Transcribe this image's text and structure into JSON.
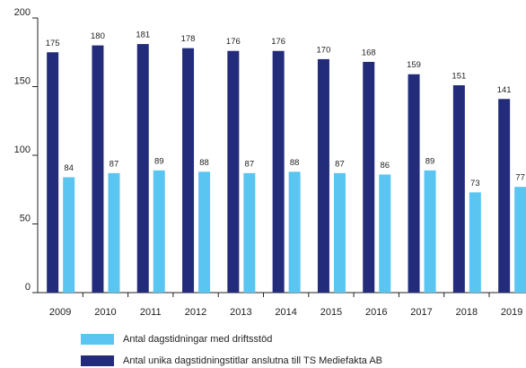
{
  "chart_data": {
    "type": "bar",
    "categories": [
      "2009",
      "2010",
      "2011",
      "2012",
      "2013",
      "2014",
      "2015",
      "2016",
      "2017",
      "2018",
      "2019"
    ],
    "series": [
      {
        "name": "Antal dagstidningar med driftsstöd",
        "color": "#5bc5f2",
        "values": [
          84,
          87,
          89,
          88,
          87,
          88,
          87,
          86,
          89,
          73,
          77
        ]
      },
      {
        "name": "Antal unika dagstidningstitlar anslutna till TS Mediefakta AB",
        "color": "#232c7a",
        "values": [
          175,
          180,
          181,
          178,
          176,
          176,
          170,
          168,
          159,
          151,
          141
        ]
      }
    ],
    "ylim": [
      0,
      200
    ],
    "yticks": [
      0,
      50,
      100,
      150,
      200
    ],
    "grid": false
  }
}
